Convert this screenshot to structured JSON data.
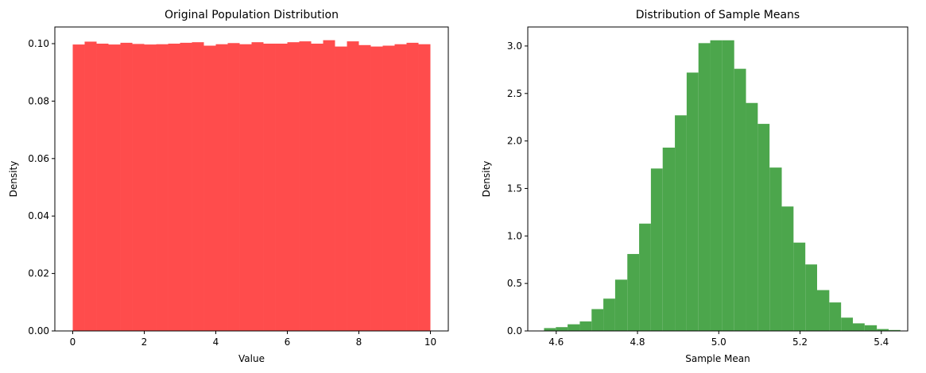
{
  "chart_data": [
    {
      "type": "histogram",
      "title": "Original Population Distribution",
      "x_label": "Value",
      "y_label": "Density",
      "color": "#ff4c4c",
      "bins": [
        0,
        0.333,
        0.667,
        1,
        1.333,
        1.667,
        2,
        2.333,
        2.667,
        3,
        3.333,
        3.667,
        4,
        4.333,
        4.667,
        5,
        5.333,
        5.667,
        6,
        6.333,
        6.667,
        7,
        7.333,
        7.667,
        8,
        8.333,
        8.667,
        9,
        9.333,
        9.667,
        10
      ],
      "values": [
        0.0997,
        0.1007,
        0.1,
        0.0997,
        0.1003,
        0.0999,
        0.0997,
        0.0998,
        0.1,
        0.1003,
        0.1005,
        0.0993,
        0.0998,
        0.1002,
        0.0998,
        0.1005,
        0.1,
        0.1,
        0.1005,
        0.1008,
        0.1,
        0.1012,
        0.099,
        0.1008,
        0.0995,
        0.099,
        0.0993,
        0.0998,
        0.1003,
        0.0998
      ],
      "xlim": [
        -0.5,
        10.5
      ],
      "ylim": [
        0,
        0.1058
      ],
      "xticks": [
        0,
        2,
        4,
        6,
        8,
        10
      ],
      "yticks": [
        {
          "value": 0,
          "label": "0.00"
        },
        {
          "value": 0.02,
          "label": "0.02"
        },
        {
          "value": 0.04,
          "label": "0.04"
        },
        {
          "value": 0.06,
          "label": "0.06"
        },
        {
          "value": 0.08,
          "label": "0.08"
        },
        {
          "value": 0.1,
          "label": "0.10"
        }
      ]
    },
    {
      "type": "histogram",
      "title": "Distribution of Sample Means",
      "x_label": "Sample Mean",
      "y_label": "Density",
      "color": "#4ca64c",
      "bins": [
        4.57,
        4.599,
        4.628,
        4.658,
        4.687,
        4.716,
        4.745,
        4.775,
        4.804,
        4.833,
        4.862,
        4.892,
        4.921,
        4.95,
        4.979,
        5.008,
        5.038,
        5.067,
        5.096,
        5.125,
        5.155,
        5.184,
        5.213,
        5.242,
        5.272,
        5.301,
        5.33,
        5.359,
        5.389,
        5.418,
        5.447
      ],
      "values": [
        0.03,
        0.04,
        0.07,
        0.1,
        0.23,
        0.34,
        0.54,
        0.81,
        1.13,
        1.71,
        1.93,
        2.27,
        2.72,
        3.03,
        3.06,
        3.06,
        2.76,
        2.4,
        2.18,
        1.72,
        1.31,
        0.93,
        0.7,
        0.43,
        0.3,
        0.14,
        0.08,
        0.06,
        0.02,
        0.01
      ],
      "xlim": [
        4.53,
        5.465
      ],
      "ylim": [
        0,
        3.2
      ],
      "xticks": [
        4.6,
        4.8,
        {
          "value": 5.0,
          "label": "5.0"
        },
        5.2,
        5.4
      ],
      "yticks": [
        {
          "value": 0,
          "label": "0.0"
        },
        {
          "value": 0.5,
          "label": "0.5"
        },
        {
          "value": 1,
          "label": "1.0"
        },
        {
          "value": 1.5,
          "label": "1.5"
        },
        {
          "value": 2,
          "label": "2.0"
        },
        {
          "value": 2.5,
          "label": "2.5"
        },
        {
          "value": 3,
          "label": "3.0"
        }
      ]
    }
  ]
}
